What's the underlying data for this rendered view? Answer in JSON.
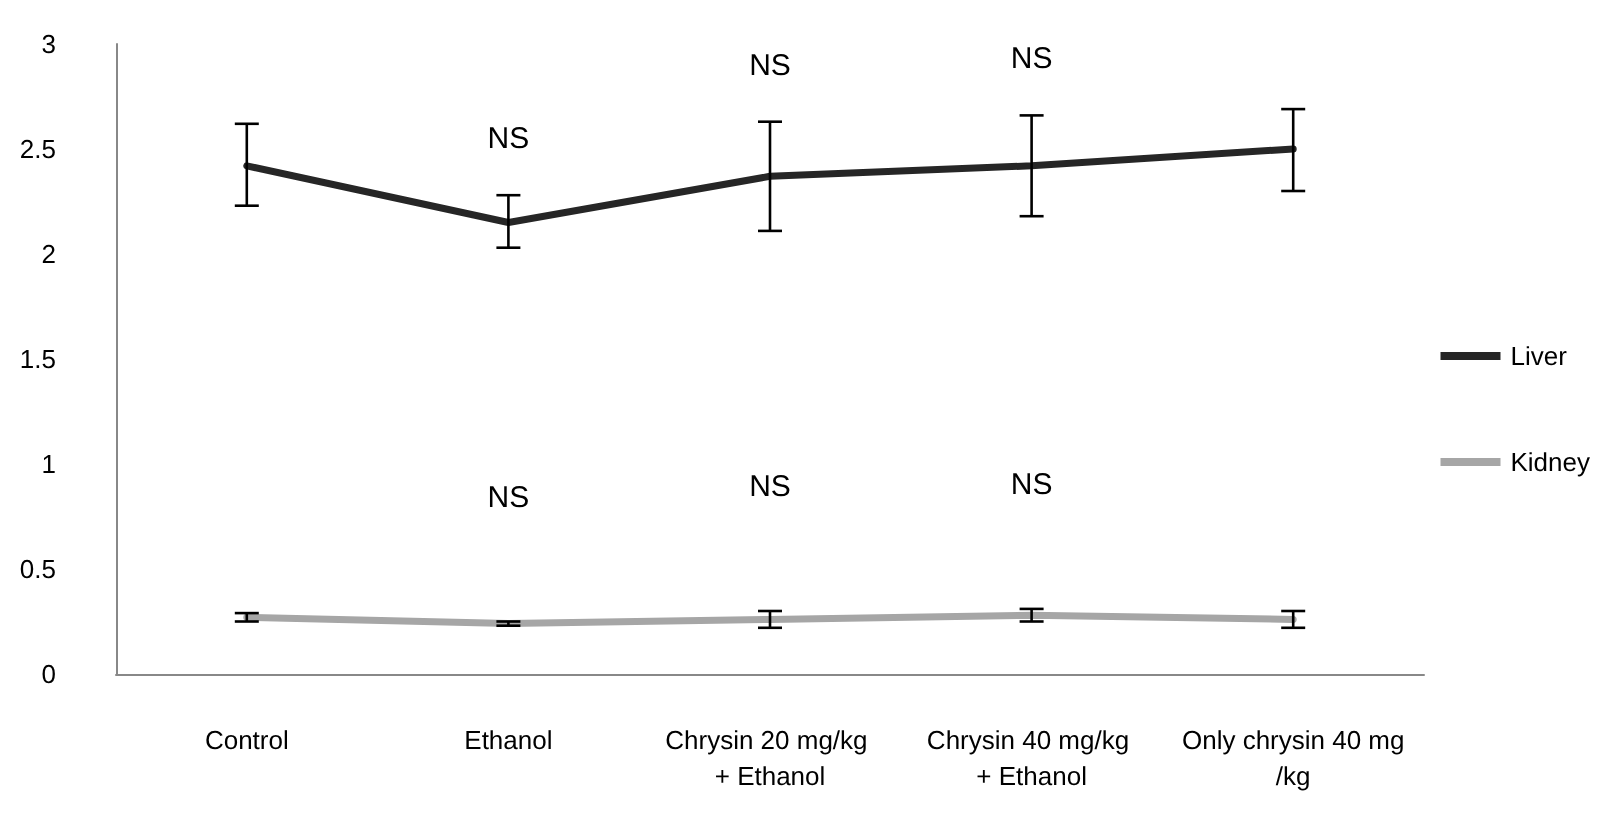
{
  "chart_data": {
    "type": "line",
    "categories": [
      "Control",
      "Ethanol",
      "Chrysin 20 mg/kg + Ethanol",
      "Chrysin 40 mg/kg + Ethanol",
      "Only chrysin 40 mg/kg"
    ],
    "series": [
      {
        "name": "Liver",
        "color": "#262626",
        "values": [
          2.42,
          2.15,
          2.37,
          2.42,
          2.5
        ],
        "errors": [
          [
            2.23,
            2.62
          ],
          [
            2.03,
            2.28
          ],
          [
            2.11,
            2.63
          ],
          [
            2.18,
            2.66
          ],
          [
            2.3,
            2.69
          ]
        ]
      },
      {
        "name": "Kidney",
        "color": "#a6a6a6",
        "values": [
          0.27,
          0.24,
          0.26,
          0.28,
          0.26
        ],
        "errors": [
          0.02,
          0.01,
          0.04,
          0.03,
          0.04
        ]
      }
    ],
    "ylim": [
      0,
      3
    ],
    "yticks": [
      0,
      0.5,
      1,
      1.5,
      2,
      2.5,
      3
    ],
    "grid": false,
    "legend": "right",
    "marker": "none",
    "line_style": "solid",
    "annotations": [
      "NS",
      "NS",
      "NS",
      "NS",
      "NS",
      "NS"
    ]
  }
}
